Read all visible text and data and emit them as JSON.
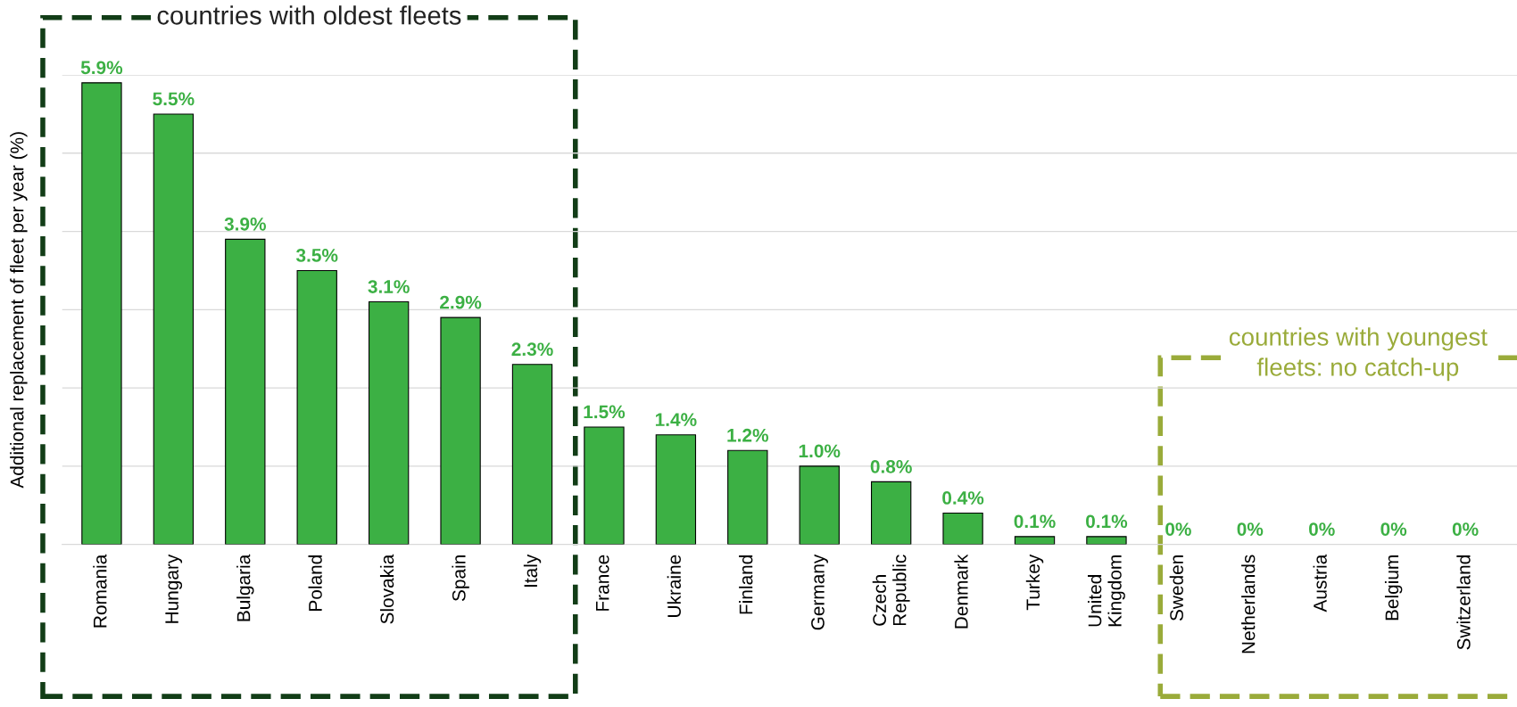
{
  "chart_data": {
    "type": "bar",
    "ylabel": "Additional replacement of fleet per year (%)",
    "categories": [
      "Romania",
      "Hungary",
      "Bulgaria",
      "Poland",
      "Slovakia",
      "Spain",
      "Italy",
      "France",
      "Ukraine",
      "Finland",
      "Germany",
      "Czech\nRepublic",
      "Denmark",
      "Turkey",
      "United\nKingdom",
      "Sweden",
      "Netherlands",
      "Austria",
      "Belgium",
      "Switzerland"
    ],
    "values": [
      5.9,
      5.5,
      3.9,
      3.5,
      3.1,
      2.9,
      2.3,
      1.5,
      1.4,
      1.2,
      1.0,
      0.8,
      0.4,
      0.1,
      0.1,
      0,
      0,
      0,
      0,
      0
    ],
    "value_labels": [
      "5.9%",
      "5.5%",
      "3.9%",
      "3.5%",
      "3.1%",
      "2.9%",
      "2.3%",
      "1.5%",
      "1.4%",
      "1.2%",
      "1.0%",
      "0.8%",
      "0.4%",
      "0.1%",
      "0.1%",
      "0%",
      "0%",
      "0%",
      "0%",
      "0%"
    ],
    "color": "#3cb044",
    "ylim": [
      0,
      6
    ],
    "yticks": [
      {
        "value": 0,
        "label": null
      },
      {
        "value": 1,
        "label": null
      },
      {
        "value": 2,
        "label": null
      },
      {
        "value": 3,
        "label": null
      },
      {
        "value": 4,
        "label": null
      },
      {
        "value": 5,
        "label": null
      },
      {
        "value": 6,
        "label": null
      }
    ],
    "grid": "y",
    "annotations": [
      "countries with oldest fleets",
      "countries with youngest\nfleets: no catch-up"
    ]
  }
}
